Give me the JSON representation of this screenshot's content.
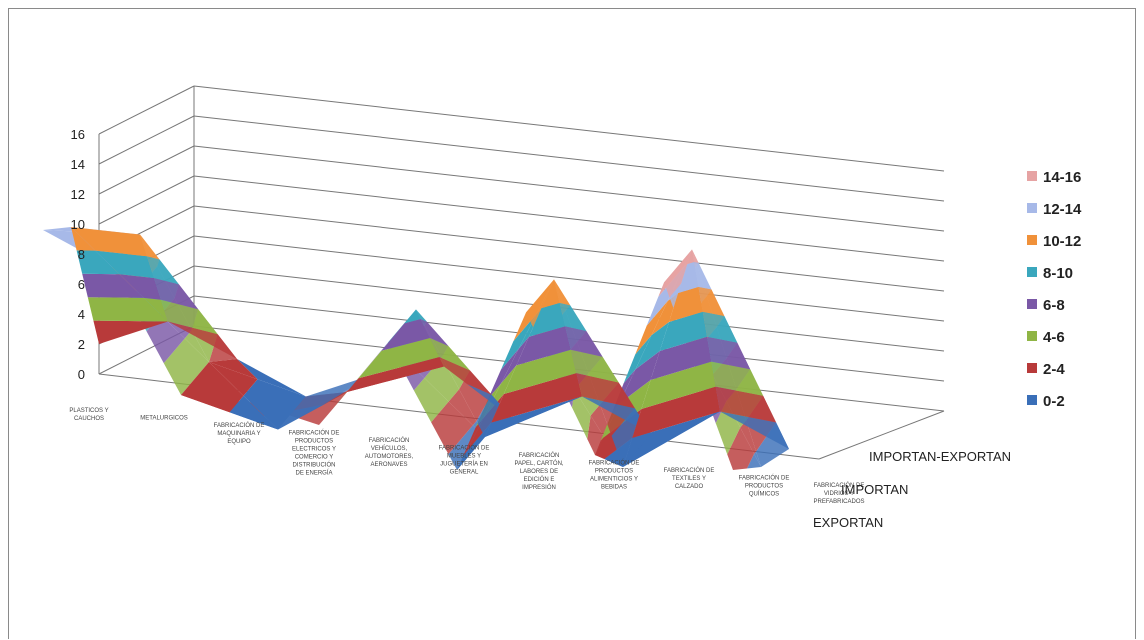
{
  "chart_data": {
    "type": "surface",
    "title": "",
    "ylim": [
      0,
      16
    ],
    "y_ticks": [
      "0",
      "2",
      "4",
      "6",
      "8",
      "10",
      "12",
      "14",
      "16"
    ],
    "categories": [
      [
        "PLASTICOS Y",
        "CAUCHOS"
      ],
      [
        "METALURGICOS"
      ],
      [
        "FABRICACIÓN DE",
        "MAQUINARIA Y",
        "EQUIPO"
      ],
      [
        "FABRICACIÓN DE",
        "PRODUCTOS",
        "ELECTRICOS Y",
        "COMERCIO Y",
        "DISTRIBUCIÓN",
        "DE ENERGÍA"
      ],
      [
        "FABRICACIÓN",
        "VEHÍCULOS,",
        "AUTOMOTORES,",
        "AERONAVES"
      ],
      [
        "FABRICACIÓN DE",
        "MUEBLES Y",
        "JUGUETERÍA EN",
        "GENERAL"
      ],
      [
        "FABRICACIÓN",
        "PAPEL, CARTÓN,",
        "LABORES DE",
        "EDICIÓN E",
        "IMPRESIÓN"
      ],
      [
        "FABRICACIÓN DE",
        "PRODUCTOS",
        "ALIMENTICIOS Y",
        "BEBIDAS"
      ],
      [
        "FABRICACIÓN DE",
        "TEXTILES Y",
        "CALZADO"
      ],
      [
        "FABRICACIÓN DE",
        "PRODUCTOS",
        "QUÍMICOS"
      ],
      [
        "FABRICACIÓN DE",
        "VIDRIOS Y",
        "PREFABRICADOS"
      ]
    ],
    "series": [
      {
        "name": "EXPORTAN",
        "values": [
          14,
          12,
          4,
          4,
          3,
          9,
          1,
          12,
          3,
          15,
          3
        ]
      },
      {
        "name": "IMPORTAN",
        "values": [
          12,
          12,
          4,
          0,
          3,
          9,
          1,
          12,
          0,
          15,
          1
        ]
      },
      {
        "name": "IMPORTAN-EXPORTAN",
        "values": [
          2,
          4,
          2,
          0,
          2,
          3,
          0,
          2,
          0,
          2,
          0
        ]
      }
    ],
    "legend": {
      "placement": "right",
      "bands": [
        {
          "label": "14-16",
          "color": "#e6a3a3"
        },
        {
          "label": "12-14",
          "color": "#a7b9e8"
        },
        {
          "label": "10-12",
          "color": "#f0913a"
        },
        {
          "label": "8-10",
          "color": "#3aa7bd"
        },
        {
          "label": "6-8",
          "color": "#7a58a6"
        },
        {
          "label": "4-6",
          "color": "#8fb545"
        },
        {
          "label": "2-4",
          "color": "#b83a3a"
        },
        {
          "label": "0-2",
          "color": "#3a6fb8"
        }
      ]
    },
    "grid": true
  }
}
